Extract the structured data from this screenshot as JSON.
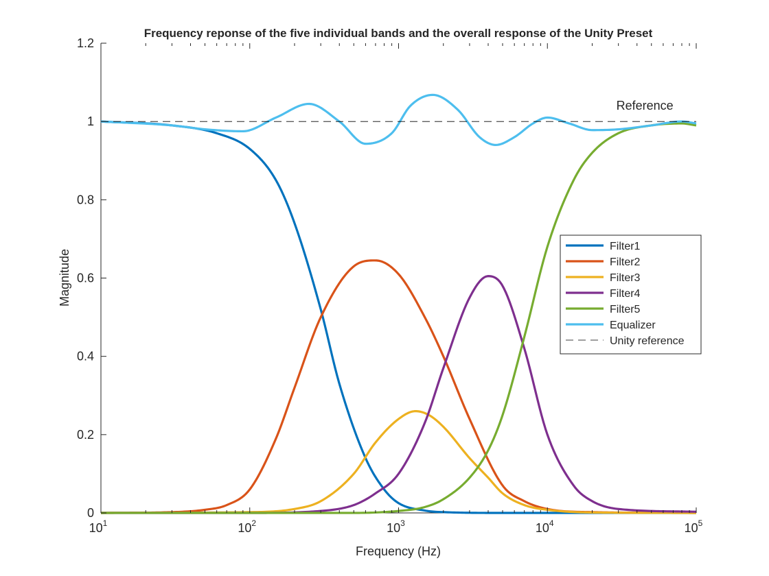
{
  "chart_data": {
    "type": "line",
    "title": "Frequency reponse of the five individual bands and the overall response of the Unity Preset",
    "xlabel": "Frequency (Hz)",
    "ylabel": "Magnitude",
    "xscale": "log",
    "xlim": [
      10,
      100000
    ],
    "ylim": [
      0,
      1.2
    ],
    "x_ticks": [
      {
        "base": "10",
        "exp": "1"
      },
      {
        "base": "10",
        "exp": "2"
      },
      {
        "base": "10",
        "exp": "3"
      },
      {
        "base": "10",
        "exp": "4"
      },
      {
        "base": "10",
        "exp": "5"
      }
    ],
    "y_ticks": [
      "0",
      "0.2",
      "0.4",
      "0.6",
      "0.8",
      "1",
      "1.2"
    ],
    "y_tick_values": [
      0,
      0.2,
      0.4,
      0.6,
      0.8,
      1.0,
      1.2
    ],
    "grid": false,
    "legend": "right",
    "annotation": {
      "text": "Reference",
      "x": 35000,
      "y": 1.02
    },
    "series": [
      {
        "name": "Filter1",
        "color": "#0072bd",
        "x": [
          10,
          30,
          60,
          100,
          150,
          200,
          300,
          400,
          600,
          800,
          1000,
          1500,
          2000,
          5000,
          100000
        ],
        "y": [
          1.0,
          0.99,
          0.97,
          0.93,
          0.85,
          0.74,
          0.52,
          0.33,
          0.14,
          0.06,
          0.025,
          0.006,
          0.002,
          0.0,
          0.0
        ]
      },
      {
        "name": "Filter2",
        "color": "#d95319",
        "x": [
          10,
          30,
          50,
          70,
          100,
          150,
          200,
          300,
          500,
          700,
          1000,
          1500,
          2000,
          3000,
          5000,
          7000,
          10000,
          20000,
          100000
        ],
        "y": [
          0.0,
          0.002,
          0.008,
          0.02,
          0.06,
          0.19,
          0.32,
          0.5,
          0.63,
          0.645,
          0.61,
          0.5,
          0.4,
          0.24,
          0.07,
          0.03,
          0.01,
          0.002,
          0.0
        ]
      },
      {
        "name": "Filter3",
        "color": "#edb120",
        "x": [
          10,
          100,
          200,
          300,
          500,
          700,
          1000,
          1300,
          1600,
          2000,
          3000,
          4000,
          5000,
          7000,
          10000,
          20000,
          100000
        ],
        "y": [
          0.0,
          0.002,
          0.01,
          0.03,
          0.1,
          0.18,
          0.24,
          0.26,
          0.25,
          0.22,
          0.14,
          0.09,
          0.05,
          0.02,
          0.008,
          0.001,
          0.0
        ]
      },
      {
        "name": "Filter4",
        "color": "#7e2f8e",
        "x": [
          10,
          100,
          300,
          500,
          700,
          1000,
          1500,
          2000,
          3000,
          4000,
          5000,
          7000,
          10000,
          15000,
          20000,
          30000,
          100000
        ],
        "y": [
          0.0,
          0.0,
          0.005,
          0.02,
          0.05,
          0.1,
          0.23,
          0.37,
          0.55,
          0.605,
          0.58,
          0.42,
          0.2,
          0.07,
          0.03,
          0.01,
          0.003
        ]
      },
      {
        "name": "Filter5",
        "color": "#77ac30",
        "x": [
          10,
          500,
          1000,
          1500,
          2000,
          3000,
          4000,
          5000,
          7000,
          10000,
          15000,
          20000,
          30000,
          50000,
          80000,
          100000
        ],
        "y": [
          0.0,
          0.0,
          0.005,
          0.015,
          0.035,
          0.09,
          0.16,
          0.25,
          0.45,
          0.68,
          0.85,
          0.92,
          0.97,
          0.99,
          0.995,
          0.99
        ]
      },
      {
        "name": "Equalizer",
        "color": "#4dbeee",
        "x": [
          10,
          30,
          50,
          90,
          150,
          250,
          400,
          600,
          900,
          1200,
          1700,
          2500,
          3500,
          4500,
          6000,
          8000,
          10000,
          14000,
          20000,
          30000,
          50000,
          80000,
          100000
        ],
        "y": [
          1.0,
          0.99,
          0.98,
          0.975,
          1.01,
          1.045,
          1.0,
          0.943,
          0.97,
          1.04,
          1.068,
          1.03,
          0.96,
          0.94,
          0.96,
          0.995,
          1.01,
          0.995,
          0.978,
          0.98,
          0.99,
          1.0,
          0.995
        ]
      },
      {
        "name": "Unity reference",
        "color": "#000000",
        "dash": true,
        "x": [
          10,
          100000
        ],
        "y": [
          1,
          1
        ]
      }
    ]
  }
}
